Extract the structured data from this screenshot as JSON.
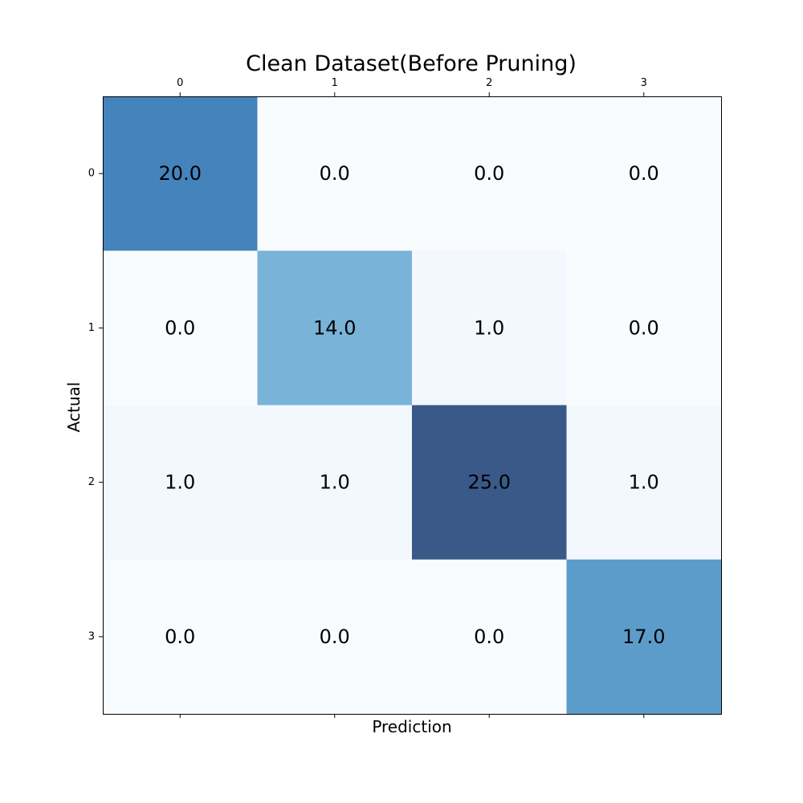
{
  "chart_data": {
    "type": "heatmap",
    "title": "Clean Dataset(Before Pruning)",
    "xlabel": "Prediction",
    "ylabel": "Actual",
    "x_categories": [
      "0",
      "1",
      "2",
      "3"
    ],
    "y_categories": [
      "0",
      "1",
      "2",
      "3"
    ],
    "values": [
      [
        20,
        0,
        0,
        0
      ],
      [
        0,
        14,
        1,
        0
      ],
      [
        1,
        1,
        25,
        1
      ],
      [
        0,
        0,
        0,
        17
      ]
    ],
    "value_labels": [
      [
        "20.0",
        "0.0",
        "0.0",
        "0.0"
      ],
      [
        "0.0",
        "14.0",
        "1.0",
        "0.0"
      ],
      [
        "1.0",
        "1.0",
        "25.0",
        "1.0"
      ],
      [
        "0.0",
        "0.0",
        "0.0",
        "17.0"
      ]
    ],
    "colormap": "Blues",
    "colormap_alpha": 0.8,
    "x_ticks_position": "top",
    "grid": false,
    "legend": false
  }
}
